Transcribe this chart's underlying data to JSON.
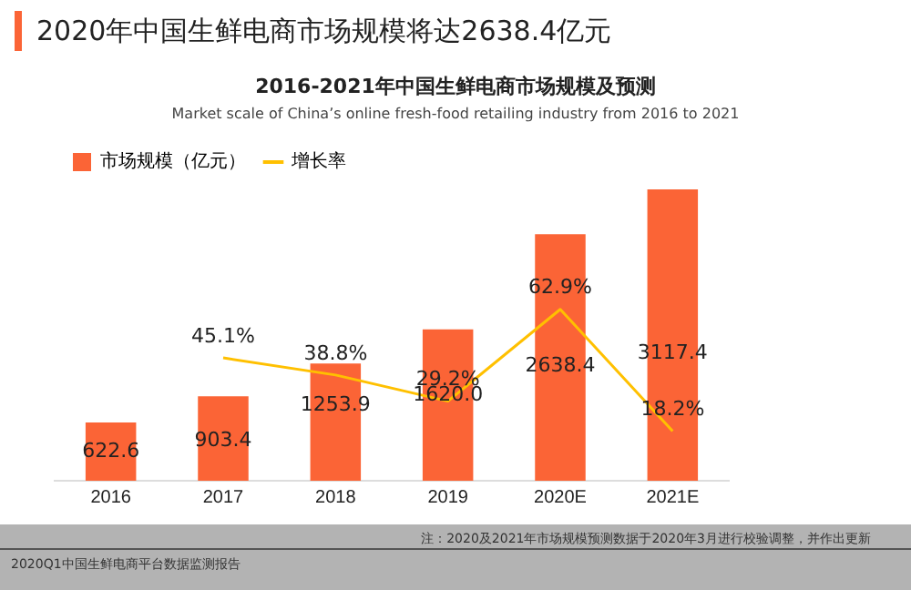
{
  "chart_data": {
    "type": "bar",
    "title": "2020年中国生鲜电商市场规模将达2638.4亿元",
    "subtitle": "2016-2021年中国生鲜电商市场规模及预测",
    "annotations": [
      "Market scale of China’s online fresh-food retailing industry from 2016 to 2021",
      "注：2020及2021年市场规模预测数据于2020年3月进行校验调整，并作出更新",
      "2020Q1中国生鲜电商平台数据监测报告"
    ],
    "categories": [
      "2016",
      "2017",
      "2018",
      "2019",
      "2020E",
      "2021E"
    ],
    "series": [
      {
        "name": "市场规模（亿元）",
        "color": "#fb6436",
        "values": [
          622.6,
          903.4,
          1253.9,
          1620.0,
          2638.4,
          3117.4
        ],
        "value_labels": [
          "622.6",
          "903.4",
          "1253.9",
          "1620.0",
          "2638.4",
          "3117.4"
        ]
      },
      {
        "name": "增长率",
        "type": "line",
        "axis": "y2",
        "color": "#ffc000",
        "values": [
          null,
          45.1,
          38.8,
          29.2,
          62.9,
          18.2
        ],
        "value_labels": [
          null,
          "45.1%",
          "38.8%",
          "29.2%",
          "62.9%",
          "18.2%"
        ],
        "marker": "none"
      }
    ],
    "data_labels": true,
    "legend": "top left",
    "grid": false,
    "tick_labels": "x"
  }
}
